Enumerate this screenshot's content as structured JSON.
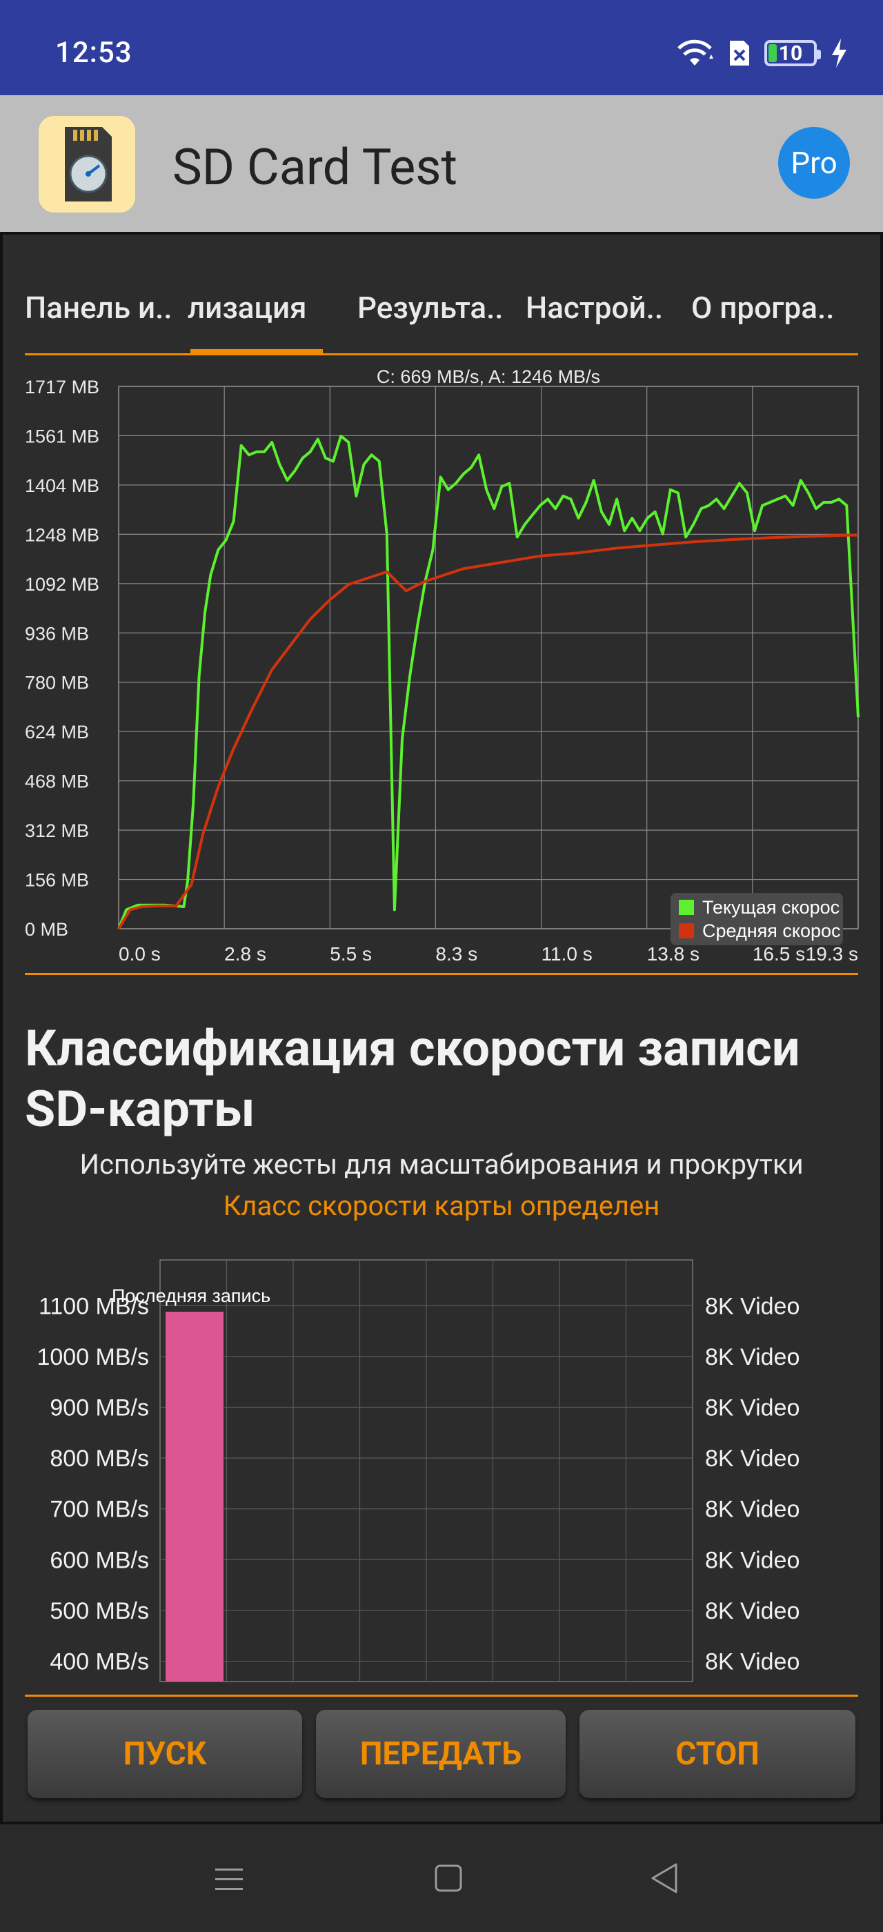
{
  "status_bar": {
    "time": "12:53",
    "battery_level": "10",
    "icons": [
      "wifi-icon",
      "sim-off-icon",
      "battery-icon",
      "charging-icon"
    ]
  },
  "app": {
    "title": "SD Card Test",
    "pro_label": "Pro",
    "logo_icon": "sd-card-speedometer-icon"
  },
  "tabs": [
    {
      "label": "Панель и.."
    },
    {
      "label": "лизация",
      "selected": true
    },
    {
      "label": "Результа.."
    },
    {
      "label": "Настрой.."
    },
    {
      "label": "О програ.."
    }
  ],
  "speed_chart": {
    "chart_data": {
      "type": "line",
      "header": "C: 669 MB/s, A: 1246 MB/s",
      "y_ticks": [
        "1717 MB",
        "1561 MB",
        "1404 MB",
        "1248 MB",
        "1092 MB",
        "936 MB",
        "780 MB",
        "624 MB",
        "468 MB",
        "312 MB",
        "156 MB",
        "0 MB"
      ],
      "x_ticks": [
        "0.0 s",
        "2.8 s",
        "5.5 s",
        "8.3 s",
        "11.0 s",
        "13.8 s",
        "16.5 s",
        "19.3 s"
      ],
      "xlim": [
        0,
        19.3
      ],
      "ylim": [
        0,
        1717
      ],
      "legend_position": "bottom-right",
      "grid": true,
      "series": [
        {
          "name": "Текущая скорос",
          "color": "#5cf02e",
          "points": [
            [
              0,
              0
            ],
            [
              0.2,
              60
            ],
            [
              0.5,
              75
            ],
            [
              0.8,
              75
            ],
            [
              1.2,
              75
            ],
            [
              1.7,
              70
            ],
            [
              1.8,
              150
            ],
            [
              1.95,
              400
            ],
            [
              2.1,
              800
            ],
            [
              2.25,
              1000
            ],
            [
              2.4,
              1120
            ],
            [
              2.6,
              1200
            ],
            [
              2.8,
              1230
            ],
            [
              3.0,
              1290
            ],
            [
              3.2,
              1530
            ],
            [
              3.4,
              1500
            ],
            [
              3.6,
              1510
            ],
            [
              3.8,
              1510
            ],
            [
              4.0,
              1540
            ],
            [
              4.2,
              1470
            ],
            [
              4.4,
              1420
            ],
            [
              4.6,
              1450
            ],
            [
              4.8,
              1490
            ],
            [
              5.0,
              1510
            ],
            [
              5.2,
              1550
            ],
            [
              5.4,
              1490
            ],
            [
              5.6,
              1480
            ],
            [
              5.8,
              1560
            ],
            [
              6.0,
              1540
            ],
            [
              6.2,
              1370
            ],
            [
              6.4,
              1470
            ],
            [
              6.6,
              1500
            ],
            [
              6.8,
              1480
            ],
            [
              7.0,
              1250
            ],
            [
              7.2,
              60
            ],
            [
              7.4,
              600
            ],
            [
              7.6,
              800
            ],
            [
              7.8,
              960
            ],
            [
              8.0,
              1100
            ],
            [
              8.2,
              1200
            ],
            [
              8.4,
              1430
            ],
            [
              8.6,
              1390
            ],
            [
              8.8,
              1410
            ],
            [
              9.0,
              1440
            ],
            [
              9.2,
              1460
            ],
            [
              9.4,
              1500
            ],
            [
              9.6,
              1390
            ],
            [
              9.8,
              1330
            ],
            [
              10.0,
              1400
            ],
            [
              10.2,
              1410
            ],
            [
              10.4,
              1240
            ],
            [
              10.6,
              1280
            ],
            [
              10.8,
              1310
            ],
            [
              11.0,
              1340
            ],
            [
              11.2,
              1360
            ],
            [
              11.4,
              1330
            ],
            [
              11.6,
              1370
            ],
            [
              11.8,
              1360
            ],
            [
              12.0,
              1300
            ],
            [
              12.2,
              1350
            ],
            [
              12.4,
              1420
            ],
            [
              12.6,
              1320
            ],
            [
              12.8,
              1280
            ],
            [
              13.0,
              1360
            ],
            [
              13.2,
              1260
            ],
            [
              13.4,
              1300
            ],
            [
              13.6,
              1260
            ],
            [
              13.8,
              1300
            ],
            [
              14.0,
              1320
            ],
            [
              14.2,
              1250
            ],
            [
              14.4,
              1390
            ],
            [
              14.6,
              1380
            ],
            [
              14.8,
              1240
            ],
            [
              15.0,
              1280
            ],
            [
              15.2,
              1330
            ],
            [
              15.4,
              1340
            ],
            [
              15.6,
              1360
            ],
            [
              15.8,
              1330
            ],
            [
              16.0,
              1370
            ],
            [
              16.2,
              1410
            ],
            [
              16.4,
              1380
            ],
            [
              16.6,
              1260
            ],
            [
              16.8,
              1340
            ],
            [
              17.0,
              1350
            ],
            [
              17.2,
              1360
            ],
            [
              17.4,
              1370
            ],
            [
              17.6,
              1340
            ],
            [
              17.8,
              1420
            ],
            [
              18.0,
              1380
            ],
            [
              18.2,
              1330
            ],
            [
              18.4,
              1350
            ],
            [
              18.6,
              1350
            ],
            [
              18.8,
              1360
            ],
            [
              19.0,
              1340
            ],
            [
              19.3,
              670
            ]
          ]
        },
        {
          "name": "Средняя скорос",
          "color": "#d0330e",
          "points": [
            [
              0,
              0
            ],
            [
              0.3,
              60
            ],
            [
              0.6,
              70
            ],
            [
              1.0,
              72
            ],
            [
              1.5,
              72
            ],
            [
              1.9,
              140
            ],
            [
              2.2,
              300
            ],
            [
              2.6,
              450
            ],
            [
              3.0,
              570
            ],
            [
              3.5,
              700
            ],
            [
              4.0,
              820
            ],
            [
              4.5,
              900
            ],
            [
              5.0,
              980
            ],
            [
              5.5,
              1040
            ],
            [
              6.0,
              1090
            ],
            [
              6.5,
              1110
            ],
            [
              7.0,
              1130
            ],
            [
              7.5,
              1070
            ],
            [
              8.0,
              1100
            ],
            [
              8.5,
              1120
            ],
            [
              9.0,
              1140
            ],
            [
              9.5,
              1150
            ],
            [
              10.0,
              1160
            ],
            [
              11.0,
              1180
            ],
            [
              12.0,
              1190
            ],
            [
              13.0,
              1205
            ],
            [
              14.0,
              1215
            ],
            [
              15.0,
              1225
            ],
            [
              16.0,
              1232
            ],
            [
              17.0,
              1238
            ],
            [
              18.0,
              1242
            ],
            [
              19.0,
              1246
            ],
            [
              19.3,
              1246
            ]
          ]
        }
      ]
    }
  },
  "classification": {
    "title": "Классификация скорости записи SD-карты",
    "subtitle": "Используйте жесты для масштабирования и прокрутки",
    "status": "Класс скорости карты определен"
  },
  "class_chart": {
    "chart_data": {
      "type": "bar",
      "y_ticks_left": [
        "1100 MB/s",
        "1000 MB/s",
        "900 MB/s",
        "800 MB/s",
        "700 MB/s",
        "600 MB/s",
        "500 MB/s",
        "400 MB/s"
      ],
      "y_ticks_right": [
        "8K Video",
        "8K Video",
        "8K Video",
        "8K Video",
        "8K Video",
        "8K Video",
        "8K Video",
        "8K Video"
      ],
      "bar_label": "Последняя запись",
      "value": 1088,
      "ylim": [
        360,
        1190
      ],
      "bar_color": "#dc5691",
      "grid": true
    }
  },
  "buttons": {
    "start": "ПУСК",
    "transfer": "ПЕРЕДАТЬ",
    "stop": "СТОП"
  },
  "nav_bar": {
    "icons": [
      "menu-icon",
      "home-icon",
      "back-icon"
    ]
  }
}
